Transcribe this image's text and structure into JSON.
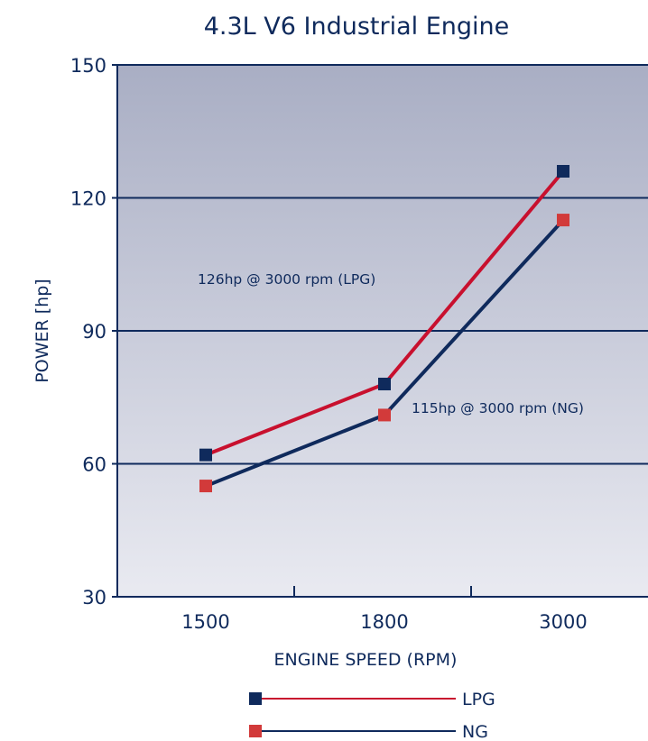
{
  "chart_data": {
    "type": "line",
    "title": "4.3L V6 Industrial Engine",
    "xlabel": "ENGINE SPEED (RPM)",
    "ylabel": "POWER [hp]",
    "categories": [
      "1500",
      "1800",
      "3000"
    ],
    "yticks": [
      30,
      60,
      90,
      120,
      150
    ],
    "ylim": [
      30,
      150
    ],
    "grid": true,
    "series": [
      {
        "name": "LPG",
        "values": [
          62,
          78,
          126
        ],
        "line_color": "#c8102e",
        "marker_color": "#0f2a5c"
      },
      {
        "name": "NG",
        "values": [
          55,
          71,
          115
        ],
        "line_color": "#0f2a5c",
        "marker_color": "#d23a3a"
      }
    ],
    "annotations": [
      {
        "text": "126hp @ 3000 rpm (LPG)"
      },
      {
        "text": "115hp @ 3000 rpm (NG)"
      }
    ],
    "legend_position": "bottom"
  },
  "colors": {
    "axis": "#0f2a5c",
    "plot_bg_top": "#a9aec4",
    "plot_bg_bottom": "#e9eaf1"
  }
}
